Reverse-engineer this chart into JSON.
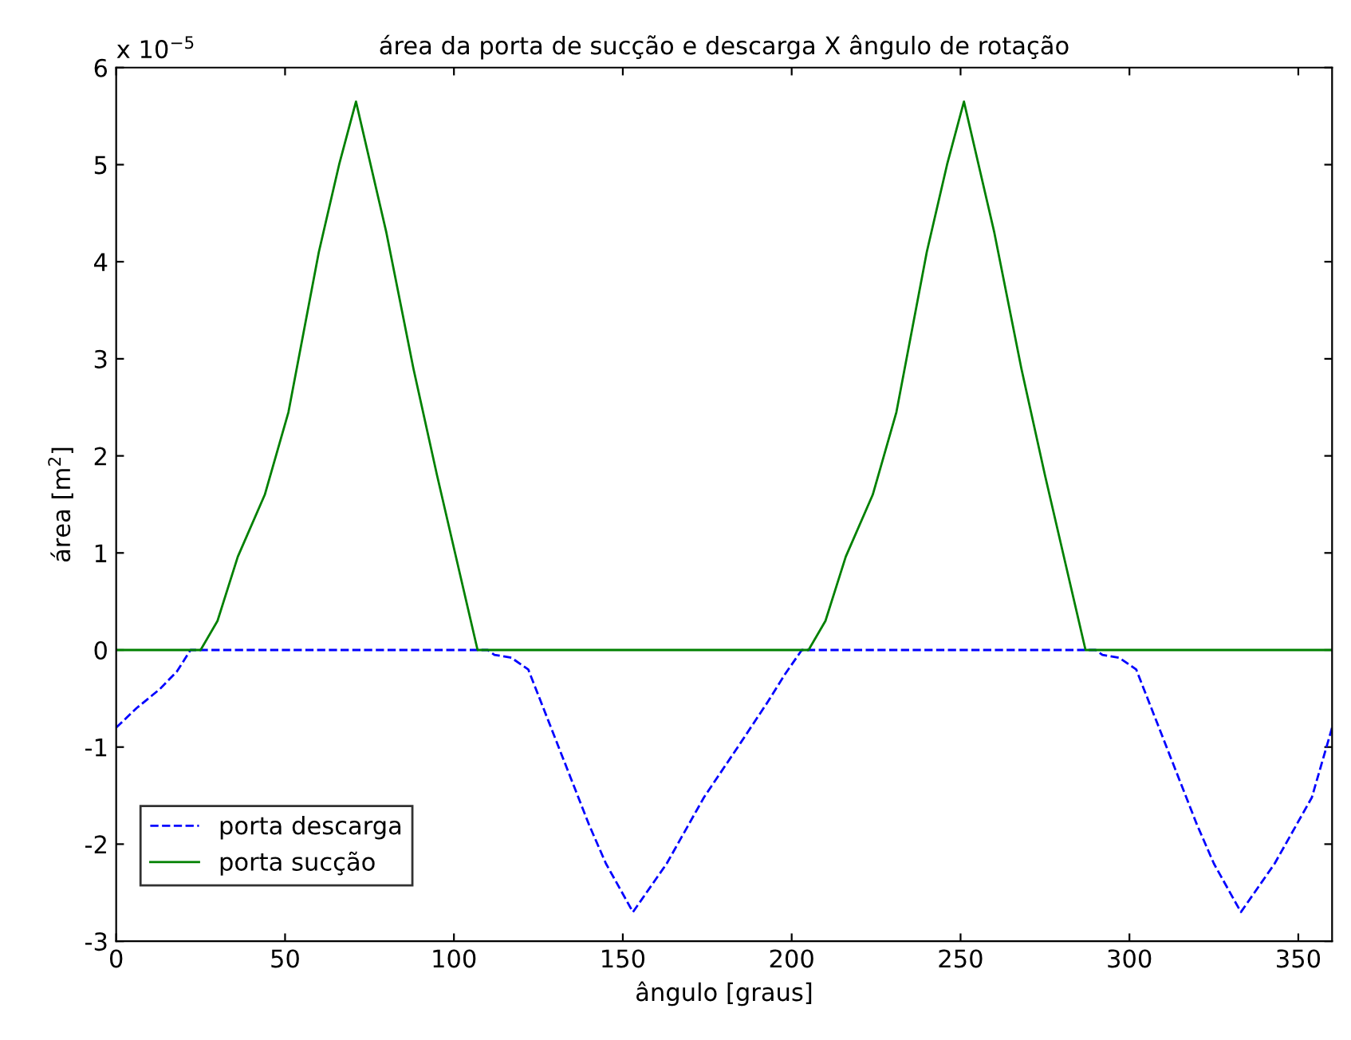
{
  "chart_data": {
    "type": "line",
    "title": "área da porta de sucção e descarga X ângulo de rotação",
    "xlabel": "ângulo [graus]",
    "ylabel": "área [m$^{2}$]",
    "annotations": [
      "x 10$^{−5}$"
    ],
    "xlim": [
      0,
      360
    ],
    "xticks": [
      0,
      50,
      100,
      150,
      200,
      250,
      300,
      350
    ],
    "ylim": [
      -3,
      6
    ],
    "yticks": [
      -3,
      -2,
      -1,
      0,
      1,
      2,
      3,
      4,
      5,
      6
    ],
    "grid": false,
    "legend": "bottom left",
    "series": [
      {
        "name": "porta descarga",
        "color": "#0000ff",
        "line_style": "dashed",
        "x": [
          0,
          6,
          13,
          18,
          22,
          110,
          112,
          117,
          122,
          131,
          140,
          145,
          153,
          163,
          174,
          185,
          193,
          198,
          203,
          290,
          292,
          297,
          302,
          311,
          320,
          325,
          333,
          343,
          354,
          360
        ],
        "values": [
          -0.8,
          -0.6,
          -0.4,
          -0.22,
          0,
          0,
          -0.05,
          -0.08,
          -0.2,
          -1.0,
          -1.8,
          -2.2,
          -2.7,
          -2.2,
          -1.52,
          -0.95,
          -0.53,
          -0.25,
          0,
          0,
          -0.05,
          -0.08,
          -0.2,
          -1.0,
          -1.8,
          -2.2,
          -2.7,
          -2.2,
          -1.52,
          -0.8
        ]
      },
      {
        "name": "porta sucção",
        "color": "#008000",
        "line_style": "solid",
        "x": [
          0,
          25,
          30,
          36,
          44,
          51,
          60,
          66,
          71,
          80,
          88,
          95,
          101,
          107,
          205,
          210,
          216,
          224,
          231,
          240,
          246,
          251,
          260,
          268,
          275,
          281,
          287,
          360
        ],
        "values": [
          0,
          0,
          0.3,
          0.96,
          1.6,
          2.45,
          4.1,
          5.0,
          5.65,
          4.3,
          2.9,
          1.8,
          0.9,
          0,
          0,
          0.3,
          0.96,
          1.6,
          2.45,
          4.1,
          5.0,
          5.65,
          4.3,
          2.9,
          1.8,
          0.9,
          0,
          0
        ]
      }
    ]
  }
}
